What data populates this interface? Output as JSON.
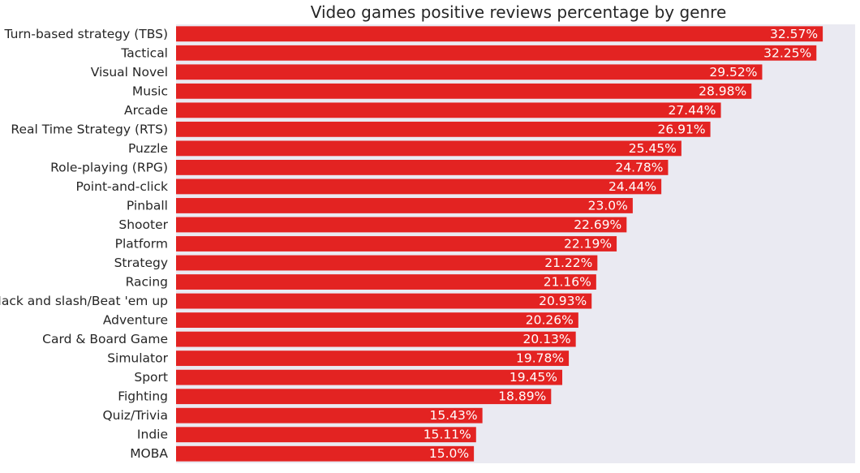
{
  "chart_data": {
    "type": "bar",
    "orientation": "horizontal",
    "title": "Video games positive reviews percentage by genre",
    "xlabel": "",
    "ylabel": "",
    "xlim": [
      0,
      34.2
    ],
    "grid": false,
    "bar_color": "#e32322",
    "plot_background": "#eaeaf2",
    "label_color": "#ffffff",
    "categories": [
      "Turn-based strategy (TBS)",
      "Tactical",
      "Visual Novel",
      "Music",
      "Arcade",
      "Real Time Strategy (RTS)",
      "Puzzle",
      "Role-playing (RPG)",
      "Point-and-click",
      "Pinball",
      "Shooter",
      "Platform",
      "Strategy",
      "Racing",
      "Hack and slash/Beat 'em up",
      "Adventure",
      "Card & Board Game",
      "Simulator",
      "Sport",
      "Fighting",
      "Quiz/Trivia",
      "Indie",
      "MOBA"
    ],
    "values": [
      32.57,
      32.25,
      29.52,
      28.98,
      27.44,
      26.91,
      25.45,
      24.78,
      24.44,
      23.0,
      22.69,
      22.19,
      21.22,
      21.16,
      20.93,
      20.26,
      20.13,
      19.78,
      19.45,
      18.89,
      15.43,
      15.11,
      15.0
    ],
    "value_labels": [
      "32.57%",
      "32.25%",
      "29.52%",
      "28.98%",
      "27.44%",
      "26.91%",
      "25.45%",
      "24.78%",
      "24.44%",
      "23.0%",
      "22.69%",
      "22.19%",
      "21.22%",
      "21.16%",
      "20.93%",
      "20.26%",
      "20.13%",
      "19.78%",
      "19.45%",
      "18.89%",
      "15.43%",
      "15.11%",
      "15.0%"
    ]
  }
}
